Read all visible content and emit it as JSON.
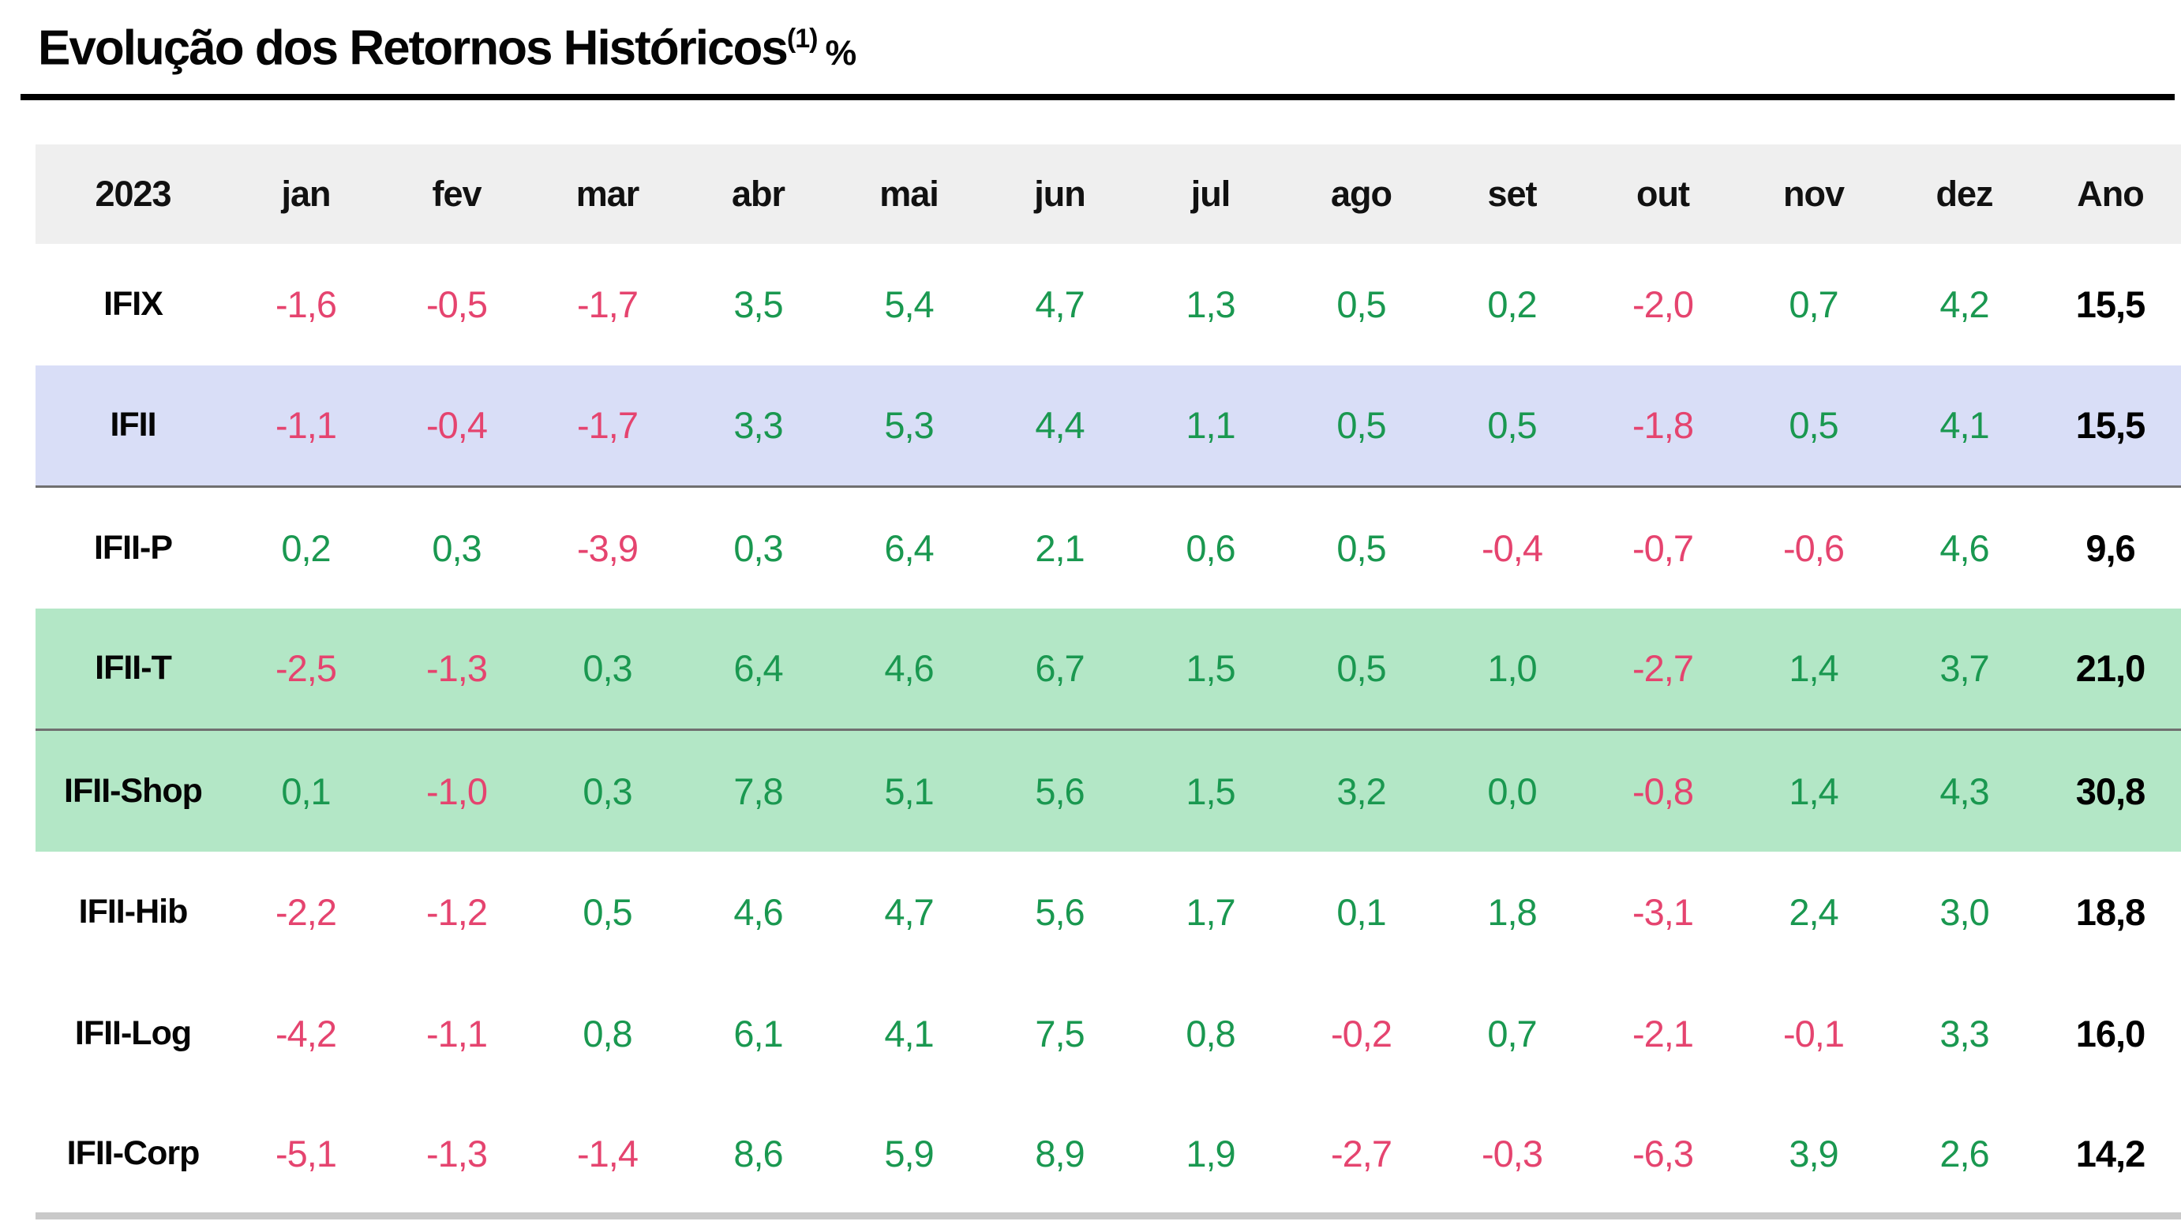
{
  "title": {
    "text": "Evolução dos Retornos Históricos",
    "superscript": "(1)",
    "suffix": "%"
  },
  "colors": {
    "positive": "#1a9850",
    "negative": "#e5446f",
    "header_bg": "#efefef",
    "blue_row_bg": "#d9def7",
    "green_row_bg": "#b3e7c6",
    "bottom_rule": "#c9c9c9"
  },
  "chart_data": {
    "type": "table",
    "title": "Evolução dos Retornos Históricos(1) %",
    "columns": [
      "2023",
      "jan",
      "fev",
      "mar",
      "abr",
      "mai",
      "jun",
      "jul",
      "ago",
      "set",
      "out",
      "nov",
      "dez",
      "Ano"
    ],
    "rows": [
      {
        "label": "IFIX",
        "highlight": null,
        "separator_below": false,
        "values": [
          "-1,6",
          "-0,5",
          "-1,7",
          "3,5",
          "5,4",
          "4,7",
          "1,3",
          "0,5",
          "0,2",
          "-2,0",
          "0,7",
          "4,2"
        ],
        "ano": "15,5"
      },
      {
        "label": "IFII",
        "highlight": "blue",
        "separator_below": true,
        "values": [
          "-1,1",
          "-0,4",
          "-1,7",
          "3,3",
          "5,3",
          "4,4",
          "1,1",
          "0,5",
          "0,5",
          "-1,8",
          "0,5",
          "4,1"
        ],
        "ano": "15,5"
      },
      {
        "label": "IFII-P",
        "highlight": null,
        "separator_below": false,
        "values": [
          "0,2",
          "0,3",
          "-3,9",
          "0,3",
          "6,4",
          "2,1",
          "0,6",
          "0,5",
          "-0,4",
          "-0,7",
          "-0,6",
          "4,6"
        ],
        "ano": "9,6"
      },
      {
        "label": "IFII-T",
        "highlight": "green",
        "separator_below": true,
        "values": [
          "-2,5",
          "-1,3",
          "0,3",
          "6,4",
          "4,6",
          "6,7",
          "1,5",
          "0,5",
          "1,0",
          "-2,7",
          "1,4",
          "3,7"
        ],
        "ano": "21,0"
      },
      {
        "label": "IFII-Shop",
        "highlight": "green",
        "separator_below": false,
        "values": [
          "0,1",
          "-1,0",
          "0,3",
          "7,8",
          "5,1",
          "5,6",
          "1,5",
          "3,2",
          "0,0",
          "-0,8",
          "1,4",
          "4,3"
        ],
        "ano": "30,8"
      },
      {
        "label": "IFII-Hib",
        "highlight": null,
        "separator_below": false,
        "values": [
          "-2,2",
          "-1,2",
          "0,5",
          "4,6",
          "4,7",
          "5,6",
          "1,7",
          "0,1",
          "1,8",
          "-3,1",
          "2,4",
          "3,0"
        ],
        "ano": "18,8"
      },
      {
        "label": "IFII-Log",
        "highlight": null,
        "separator_below": false,
        "values": [
          "-4,2",
          "-1,1",
          "0,8",
          "6,1",
          "4,1",
          "7,5",
          "0,8",
          "-0,2",
          "0,7",
          "-2,1",
          "-0,1",
          "3,3"
        ],
        "ano": "16,0"
      },
      {
        "label": "IFII-Corp",
        "highlight": null,
        "separator_below": false,
        "values": [
          "-5,1",
          "-1,3",
          "-1,4",
          "8,6",
          "5,9",
          "8,9",
          "1,9",
          "-2,7",
          "-0,3",
          "-6,3",
          "3,9",
          "2,6"
        ],
        "ano": "14,2"
      }
    ]
  }
}
